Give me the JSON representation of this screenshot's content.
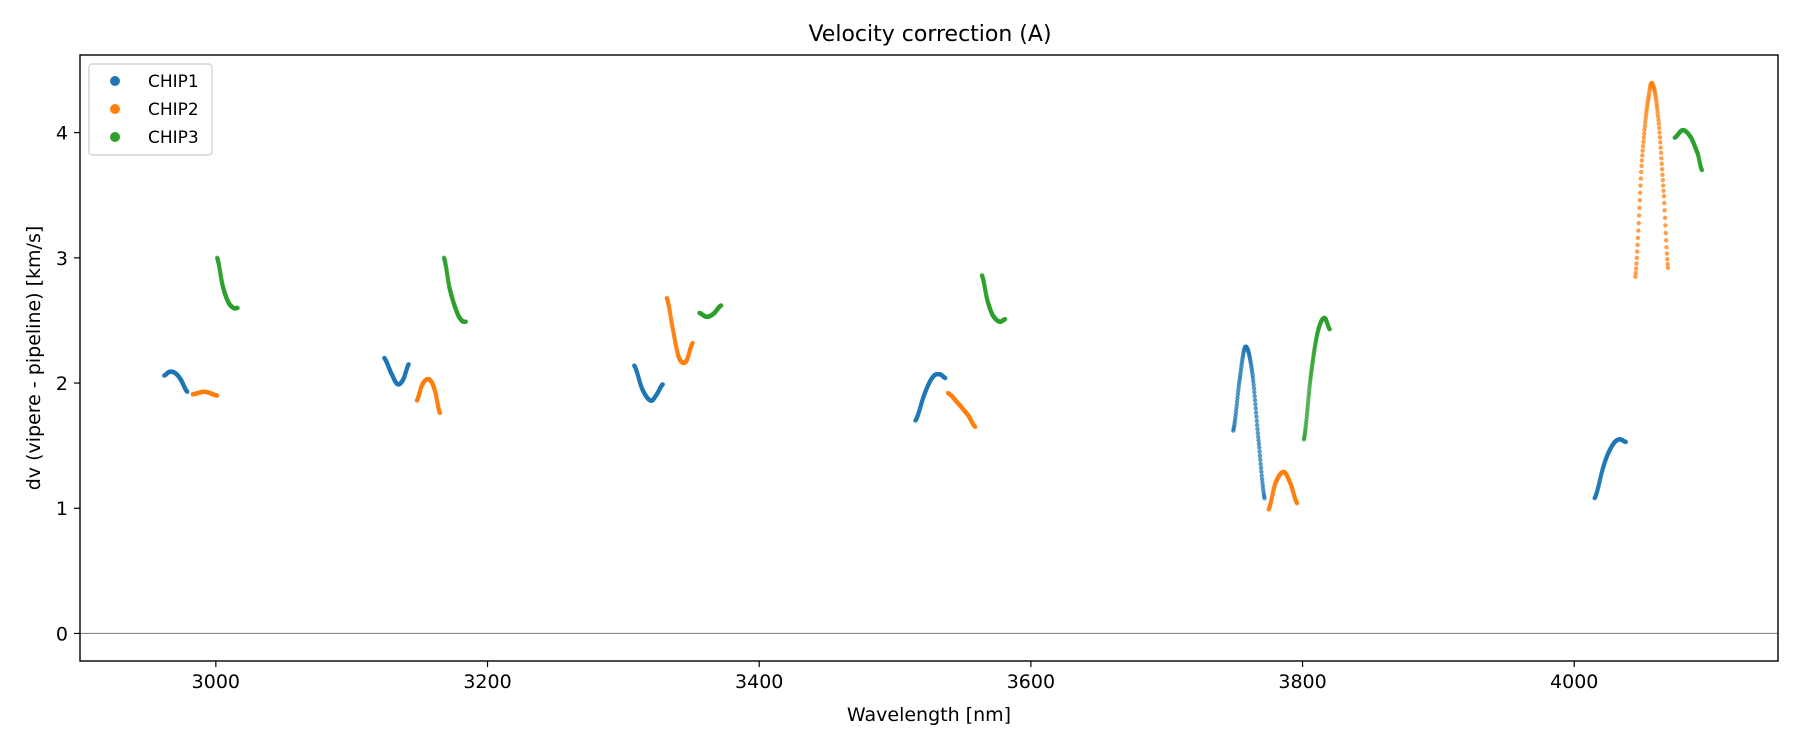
{
  "chart_data": {
    "type": "scatter",
    "title": "Velocity correction (A)",
    "xlabel": "Wavelength [nm]",
    "ylabel": "dv (vipere - pipeline) [km/s]",
    "xlim": [
      2900,
      4150
    ],
    "ylim": [
      -0.22,
      4.62
    ],
    "xticks": [
      3000,
      3200,
      3400,
      3600,
      3800,
      4000
    ],
    "yticks": [
      0,
      1,
      2,
      3,
      4
    ],
    "reference_line_y": 0,
    "legend_position": "upper-left",
    "legend": [
      "CHIP1",
      "CHIP2",
      "CHIP3"
    ],
    "series": [
      {
        "name": "CHIP1",
        "color": "#1f77b4",
        "segments": [
          {
            "knots": [
              [
                2962,
                2.06
              ],
              [
                2966,
                2.09
              ],
              [
                2970,
                2.08
              ],
              [
                2974,
                2.03
              ],
              [
                2979,
                1.93
              ]
            ]
          },
          {
            "knots": [
              [
                3124,
                2.2
              ],
              [
                3130,
                2.06
              ],
              [
                3134,
                1.99
              ],
              [
                3138,
                2.03
              ],
              [
                3142,
                2.15
              ]
            ]
          },
          {
            "knots": [
              [
                3308,
                2.14
              ],
              [
                3314,
                1.95
              ],
              [
                3320,
                1.86
              ],
              [
                3324,
                1.9
              ],
              [
                3329,
                1.99
              ]
            ]
          },
          {
            "knots": [
              [
                3515,
                1.7
              ],
              [
                3522,
                1.92
              ],
              [
                3528,
                2.05
              ],
              [
                3533,
                2.07
              ],
              [
                3537,
                2.04
              ]
            ]
          },
          {
            "knots": [
              [
                3749,
                1.62
              ],
              [
                3754,
                2.05
              ],
              [
                3758,
                2.29
              ],
              [
                3763,
                2.08
              ],
              [
                3768,
                1.5
              ],
              [
                3772,
                1.08
              ]
            ]
          },
          {
            "knots": [
              [
                4015,
                1.08
              ],
              [
                4022,
                1.35
              ],
              [
                4028,
                1.5
              ],
              [
                4033,
                1.55
              ],
              [
                4038,
                1.53
              ]
            ]
          }
        ]
      },
      {
        "name": "CHIP2",
        "color": "#ff7f0e",
        "segments": [
          {
            "knots": [
              [
                2983,
                1.91
              ],
              [
                2992,
                1.93
              ],
              [
                3001,
                1.9
              ]
            ]
          },
          {
            "knots": [
              [
                3148,
                1.86
              ],
              [
                3152,
                1.99
              ],
              [
                3157,
                2.03
              ],
              [
                3161,
                1.95
              ],
              [
                3165,
                1.76
              ]
            ]
          },
          {
            "knots": [
              [
                3332,
                2.68
              ],
              [
                3337,
                2.4
              ],
              [
                3341,
                2.2
              ],
              [
                3346,
                2.17
              ],
              [
                3351,
                2.32
              ]
            ]
          },
          {
            "knots": [
              [
                3539,
                1.92
              ],
              [
                3548,
                1.82
              ],
              [
                3554,
                1.74
              ],
              [
                3559,
                1.65
              ]
            ]
          },
          {
            "knots": [
              [
                3775,
                0.99
              ],
              [
                3780,
                1.2
              ],
              [
                3786,
                1.29
              ],
              [
                3791,
                1.2
              ],
              [
                3796,
                1.04
              ]
            ]
          },
          {
            "knots": [
              [
                4045,
                2.85
              ],
              [
                4050,
                3.8
              ],
              [
                4055,
                4.3
              ],
              [
                4058,
                4.38
              ],
              [
                4062,
                4.1
              ],
              [
                4066,
                3.5
              ],
              [
                4069,
                2.92
              ]
            ]
          }
        ]
      },
      {
        "name": "CHIP3",
        "color": "#2ca02c",
        "segments": [
          {
            "knots": [
              [
                3001,
                3.0
              ],
              [
                3005,
                2.78
              ],
              [
                3009,
                2.65
              ],
              [
                3013,
                2.6
              ],
              [
                3016,
                2.6
              ]
            ]
          },
          {
            "knots": [
              [
                3168,
                3.0
              ],
              [
                3172,
                2.76
              ],
              [
                3177,
                2.58
              ],
              [
                3181,
                2.5
              ],
              [
                3184,
                2.49
              ]
            ]
          },
          {
            "knots": [
              [
                3356,
                2.56
              ],
              [
                3361,
                2.53
              ],
              [
                3366,
                2.55
              ],
              [
                3372,
                2.62
              ]
            ]
          },
          {
            "knots": [
              [
                3564,
                2.86
              ],
              [
                3568,
                2.66
              ],
              [
                3572,
                2.54
              ],
              [
                3577,
                2.49
              ],
              [
                3581,
                2.51
              ]
            ]
          },
          {
            "knots": [
              [
                3801,
                1.55
              ],
              [
                3806,
                2.05
              ],
              [
                3811,
                2.4
              ],
              [
                3816,
                2.52
              ],
              [
                3820,
                2.43
              ]
            ]
          },
          {
            "knots": [
              [
                4074,
                3.96
              ],
              [
                4080,
                4.02
              ],
              [
                4086,
                3.96
              ],
              [
                4091,
                3.83
              ],
              [
                4094,
                3.7
              ]
            ]
          }
        ]
      }
    ]
  }
}
